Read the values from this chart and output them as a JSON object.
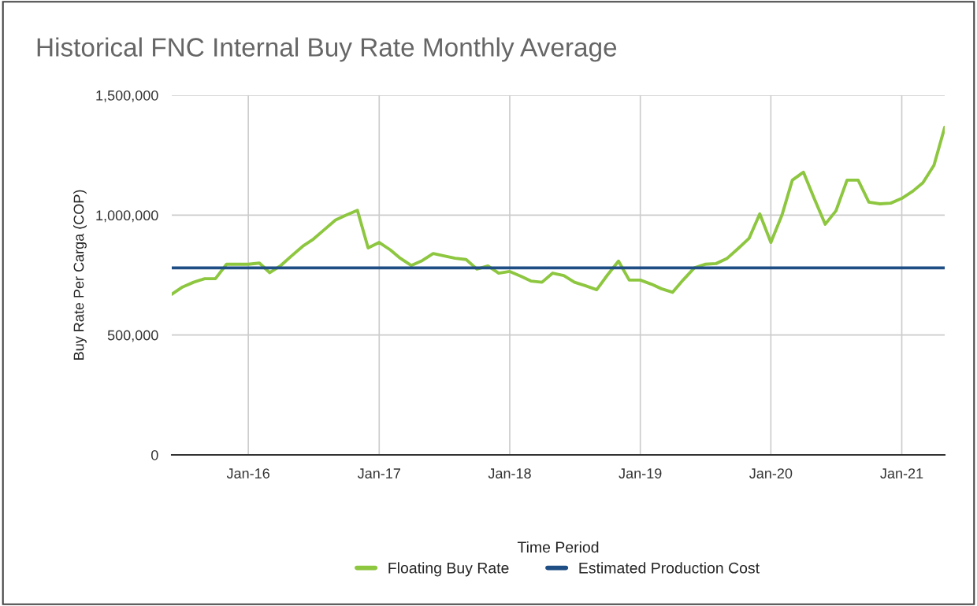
{
  "chart_data": {
    "type": "line",
    "title": "Historical FNC Internal Buy Rate Monthly Average",
    "xlabel": "Time Period",
    "ylabel": "Buy Rate Per Carga (COP)",
    "x": [
      "2015-06",
      "2015-07",
      "2015-08",
      "2015-09",
      "2015-10",
      "2015-11",
      "2015-12",
      "2016-01",
      "2016-02",
      "2016-03",
      "2016-04",
      "2016-05",
      "2016-06",
      "2016-07",
      "2016-08",
      "2016-09",
      "2016-10",
      "2016-11",
      "2016-12",
      "2017-01",
      "2017-02",
      "2017-03",
      "2017-04",
      "2017-05",
      "2017-06",
      "2017-07",
      "2017-08",
      "2017-09",
      "2017-10",
      "2017-11",
      "2017-12",
      "2018-01",
      "2018-02",
      "2018-03",
      "2018-04",
      "2018-05",
      "2018-06",
      "2018-07",
      "2018-08",
      "2018-09",
      "2018-10",
      "2018-11",
      "2018-12",
      "2019-01",
      "2019-02",
      "2019-03",
      "2019-04",
      "2019-05",
      "2019-06",
      "2019-07",
      "2019-08",
      "2019-09",
      "2019-10",
      "2019-11",
      "2019-12",
      "2020-01",
      "2020-02",
      "2020-03",
      "2020-04",
      "2020-05",
      "2020-06",
      "2020-07",
      "2020-08",
      "2020-09",
      "2020-10",
      "2020-11",
      "2020-12",
      "2021-01",
      "2021-02",
      "2021-03",
      "2021-04",
      "2021-05"
    ],
    "series": [
      {
        "name": "Floating Buy Rate",
        "color": "#8dc63f",
        "values": [
          670000,
          700000,
          720000,
          735000,
          735000,
          795000,
          795000,
          795000,
          800000,
          760000,
          790000,
          830000,
          870000,
          900000,
          940000,
          980000,
          1000000,
          1020000,
          863000,
          886000,
          855000,
          820000,
          790000,
          810000,
          840000,
          830000,
          820000,
          815000,
          775000,
          788000,
          758000,
          765000,
          745000,
          725000,
          720000,
          758000,
          748000,
          720000,
          705000,
          689000,
          750000,
          808000,
          729000,
          729000,
          712000,
          693000,
          678000,
          730000,
          780000,
          795000,
          798000,
          820000,
          860000,
          903000,
          1005000,
          886000,
          1000000,
          1146000,
          1179000,
          1070000,
          962000,
          1018000,
          1146000,
          1146000,
          1054000,
          1047000,
          1050000,
          1070000,
          1100000,
          1135000,
          1208000,
          1366000
        ]
      },
      {
        "name": "Estimated Production Cost",
        "color": "#1f4e85",
        "values": [
          780000,
          780000,
          780000,
          780000,
          780000,
          780000,
          780000,
          780000,
          780000,
          780000,
          780000,
          780000,
          780000,
          780000,
          780000,
          780000,
          780000,
          780000,
          780000,
          780000,
          780000,
          780000,
          780000,
          780000,
          780000,
          780000,
          780000,
          780000,
          780000,
          780000,
          780000,
          780000,
          780000,
          780000,
          780000,
          780000,
          780000,
          780000,
          780000,
          780000,
          780000,
          780000,
          780000,
          780000,
          780000,
          780000,
          780000,
          780000,
          780000,
          780000,
          780000,
          780000,
          780000,
          780000,
          780000,
          780000,
          780000,
          780000,
          780000,
          780000,
          780000,
          780000,
          780000,
          780000,
          780000,
          780000,
          780000,
          780000,
          780000,
          780000,
          780000,
          780000
        ]
      }
    ],
    "xlim": [
      "2015-06",
      "2021-05"
    ],
    "xticks": [
      {
        "value": "2016-01",
        "label": "Jan-16"
      },
      {
        "value": "2017-01",
        "label": "Jan-17"
      },
      {
        "value": "2018-01",
        "label": "Jan-18"
      },
      {
        "value": "2019-01",
        "label": "Jan-19"
      },
      {
        "value": "2020-01",
        "label": "Jan-20"
      },
      {
        "value": "2021-01",
        "label": "Jan-21"
      }
    ],
    "ylim": [
      0,
      1500000
    ],
    "yticks": [
      {
        "value": 0,
        "label": "0"
      },
      {
        "value": 500000,
        "label": "500,000"
      },
      {
        "value": 1000000,
        "label": "1,000,000"
      },
      {
        "value": 1500000,
        "label": "1,500,000"
      }
    ],
    "grid": true,
    "legend": "bottom",
    "marker": "none",
    "line_style": "solid"
  }
}
